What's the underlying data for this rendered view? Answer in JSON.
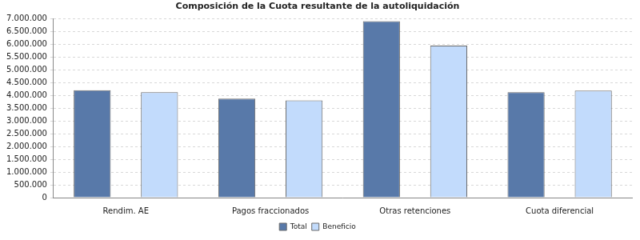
{
  "chart_data": {
    "type": "bar",
    "title": "Composición de la Cuota resultante de la autoliquidación",
    "categories": [
      "Rendim. AE",
      "Pagos fraccionados",
      "Otras retenciones",
      "Cuota diferencial"
    ],
    "series": [
      {
        "name": "Total",
        "color": "#5879a9",
        "values": [
          4200000,
          3870000,
          6900000,
          4120000
        ]
      },
      {
        "name": "Beneficio",
        "color": "#c2dbfc",
        "values": [
          4120000,
          3800000,
          5940000,
          4180000
        ]
      }
    ],
    "ylim": [
      0,
      7000000
    ],
    "yticks": [
      {
        "value": 0,
        "label": "0"
      },
      {
        "value": 500000,
        "label": "500.000"
      },
      {
        "value": 1000000,
        "label": "1.000.000"
      },
      {
        "value": 1500000,
        "label": "1.500.000"
      },
      {
        "value": 2000000,
        "label": "2.000.000"
      },
      {
        "value": 2500000,
        "label": "2.500.000"
      },
      {
        "value": 3000000,
        "label": "3.000.000"
      },
      {
        "value": 3500000,
        "label": "3.500.000"
      },
      {
        "value": 4000000,
        "label": "4.000.000"
      },
      {
        "value": 4500000,
        "label": "4.500.000"
      },
      {
        "value": 5000000,
        "label": "5.000.000"
      },
      {
        "value": 5500000,
        "label": "5.500.000"
      },
      {
        "value": 6000000,
        "label": "6.000.000"
      },
      {
        "value": 6500000,
        "label": "6.500.000"
      },
      {
        "value": 7000000,
        "label": "7.000.000"
      }
    ],
    "grid": true,
    "legend": "bottom"
  }
}
